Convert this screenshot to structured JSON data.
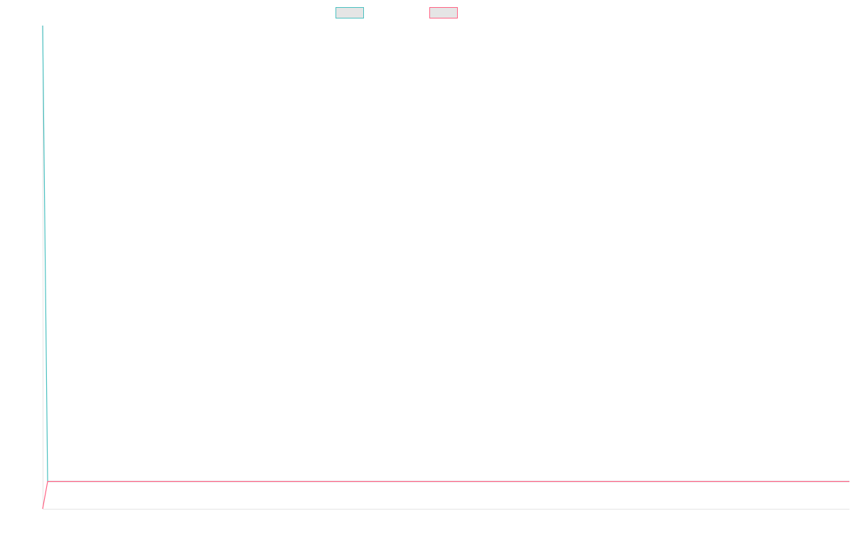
{
  "chart_data": {
    "type": "line",
    "title": "",
    "xlabel": "",
    "ylabel": "",
    "ylim": [
      -0.06,
      1
    ],
    "grid": false,
    "legend_placement": "top",
    "series": [
      {
        "color": "#4bc0c0",
        "values": [
          1,
          0,
          0,
          0,
          0,
          0,
          0,
          0,
          0,
          0,
          0,
          0,
          0,
          0,
          0,
          0,
          0,
          0,
          0,
          0,
          0,
          0,
          0,
          0,
          0,
          0,
          0,
          0,
          0,
          0,
          0,
          0,
          0,
          0,
          0,
          0,
          0,
          0,
          0,
          0,
          0,
          0,
          0,
          0,
          0,
          0,
          0,
          0,
          0,
          0,
          0,
          0,
          0,
          0,
          0,
          0,
          0,
          0,
          0,
          0,
          0,
          0,
          0,
          0,
          0,
          0,
          0,
          0,
          0,
          0,
          0,
          0,
          0,
          0,
          0,
          0,
          0,
          0,
          0,
          0,
          0,
          0,
          0,
          0,
          0,
          0,
          0,
          0,
          0,
          0,
          0,
          0,
          0,
          0,
          0,
          0,
          0,
          0,
          0,
          0,
          0,
          0,
          0,
          0,
          0,
          0,
          0,
          0,
          0,
          0,
          0,
          0,
          0,
          0,
          0,
          0,
          0,
          0,
          0,
          0,
          0,
          0,
          0,
          0,
          0,
          0,
          0,
          0,
          0,
          0,
          0,
          0,
          0,
          0,
          0,
          0,
          0,
          0,
          0,
          0,
          0,
          0,
          0,
          0,
          0,
          0,
          0,
          0,
          0,
          0,
          0,
          0,
          0,
          0,
          0,
          0,
          0,
          0,
          0,
          0,
          0,
          0,
          0
        ]
      },
      {
        "color": "#ff6384",
        "values": [
          -0.06,
          0,
          0,
          0,
          0,
          0,
          0,
          0,
          0,
          0,
          0,
          0,
          0,
          0,
          0,
          0,
          0,
          0,
          0,
          0,
          0,
          0,
          0,
          0,
          0,
          0,
          0,
          0,
          0,
          0,
          0,
          0,
          0,
          0,
          0,
          0,
          0,
          0,
          0,
          0,
          0,
          0,
          0,
          0,
          0,
          0,
          0,
          0,
          0,
          0,
          0,
          0,
          0,
          0,
          0,
          0,
          0,
          0,
          0,
          0,
          0,
          0,
          0,
          0,
          0,
          0,
          0,
          0,
          0,
          0,
          0,
          0,
          0,
          0,
          0,
          0,
          0,
          0,
          0,
          0,
          0,
          0,
          0,
          0,
          0,
          0,
          0,
          0,
          0,
          0,
          0,
          0,
          0,
          0,
          0,
          0,
          0,
          0,
          0,
          0,
          0,
          0,
          0,
          0,
          0,
          0,
          0,
          0,
          0,
          0,
          0,
          0,
          0,
          0,
          0,
          0,
          0,
          0,
          0,
          0,
          0,
          0,
          0,
          0,
          0,
          0,
          0,
          0,
          0,
          0,
          0,
          0,
          0,
          0,
          0,
          0,
          0,
          0,
          0,
          0,
          0,
          0,
          0,
          0,
          0,
          0,
          0,
          0,
          0,
          0,
          0,
          0,
          0,
          0,
          0,
          0,
          0,
          0,
          0,
          0,
          0,
          0,
          0
        ]
      }
    ]
  }
}
